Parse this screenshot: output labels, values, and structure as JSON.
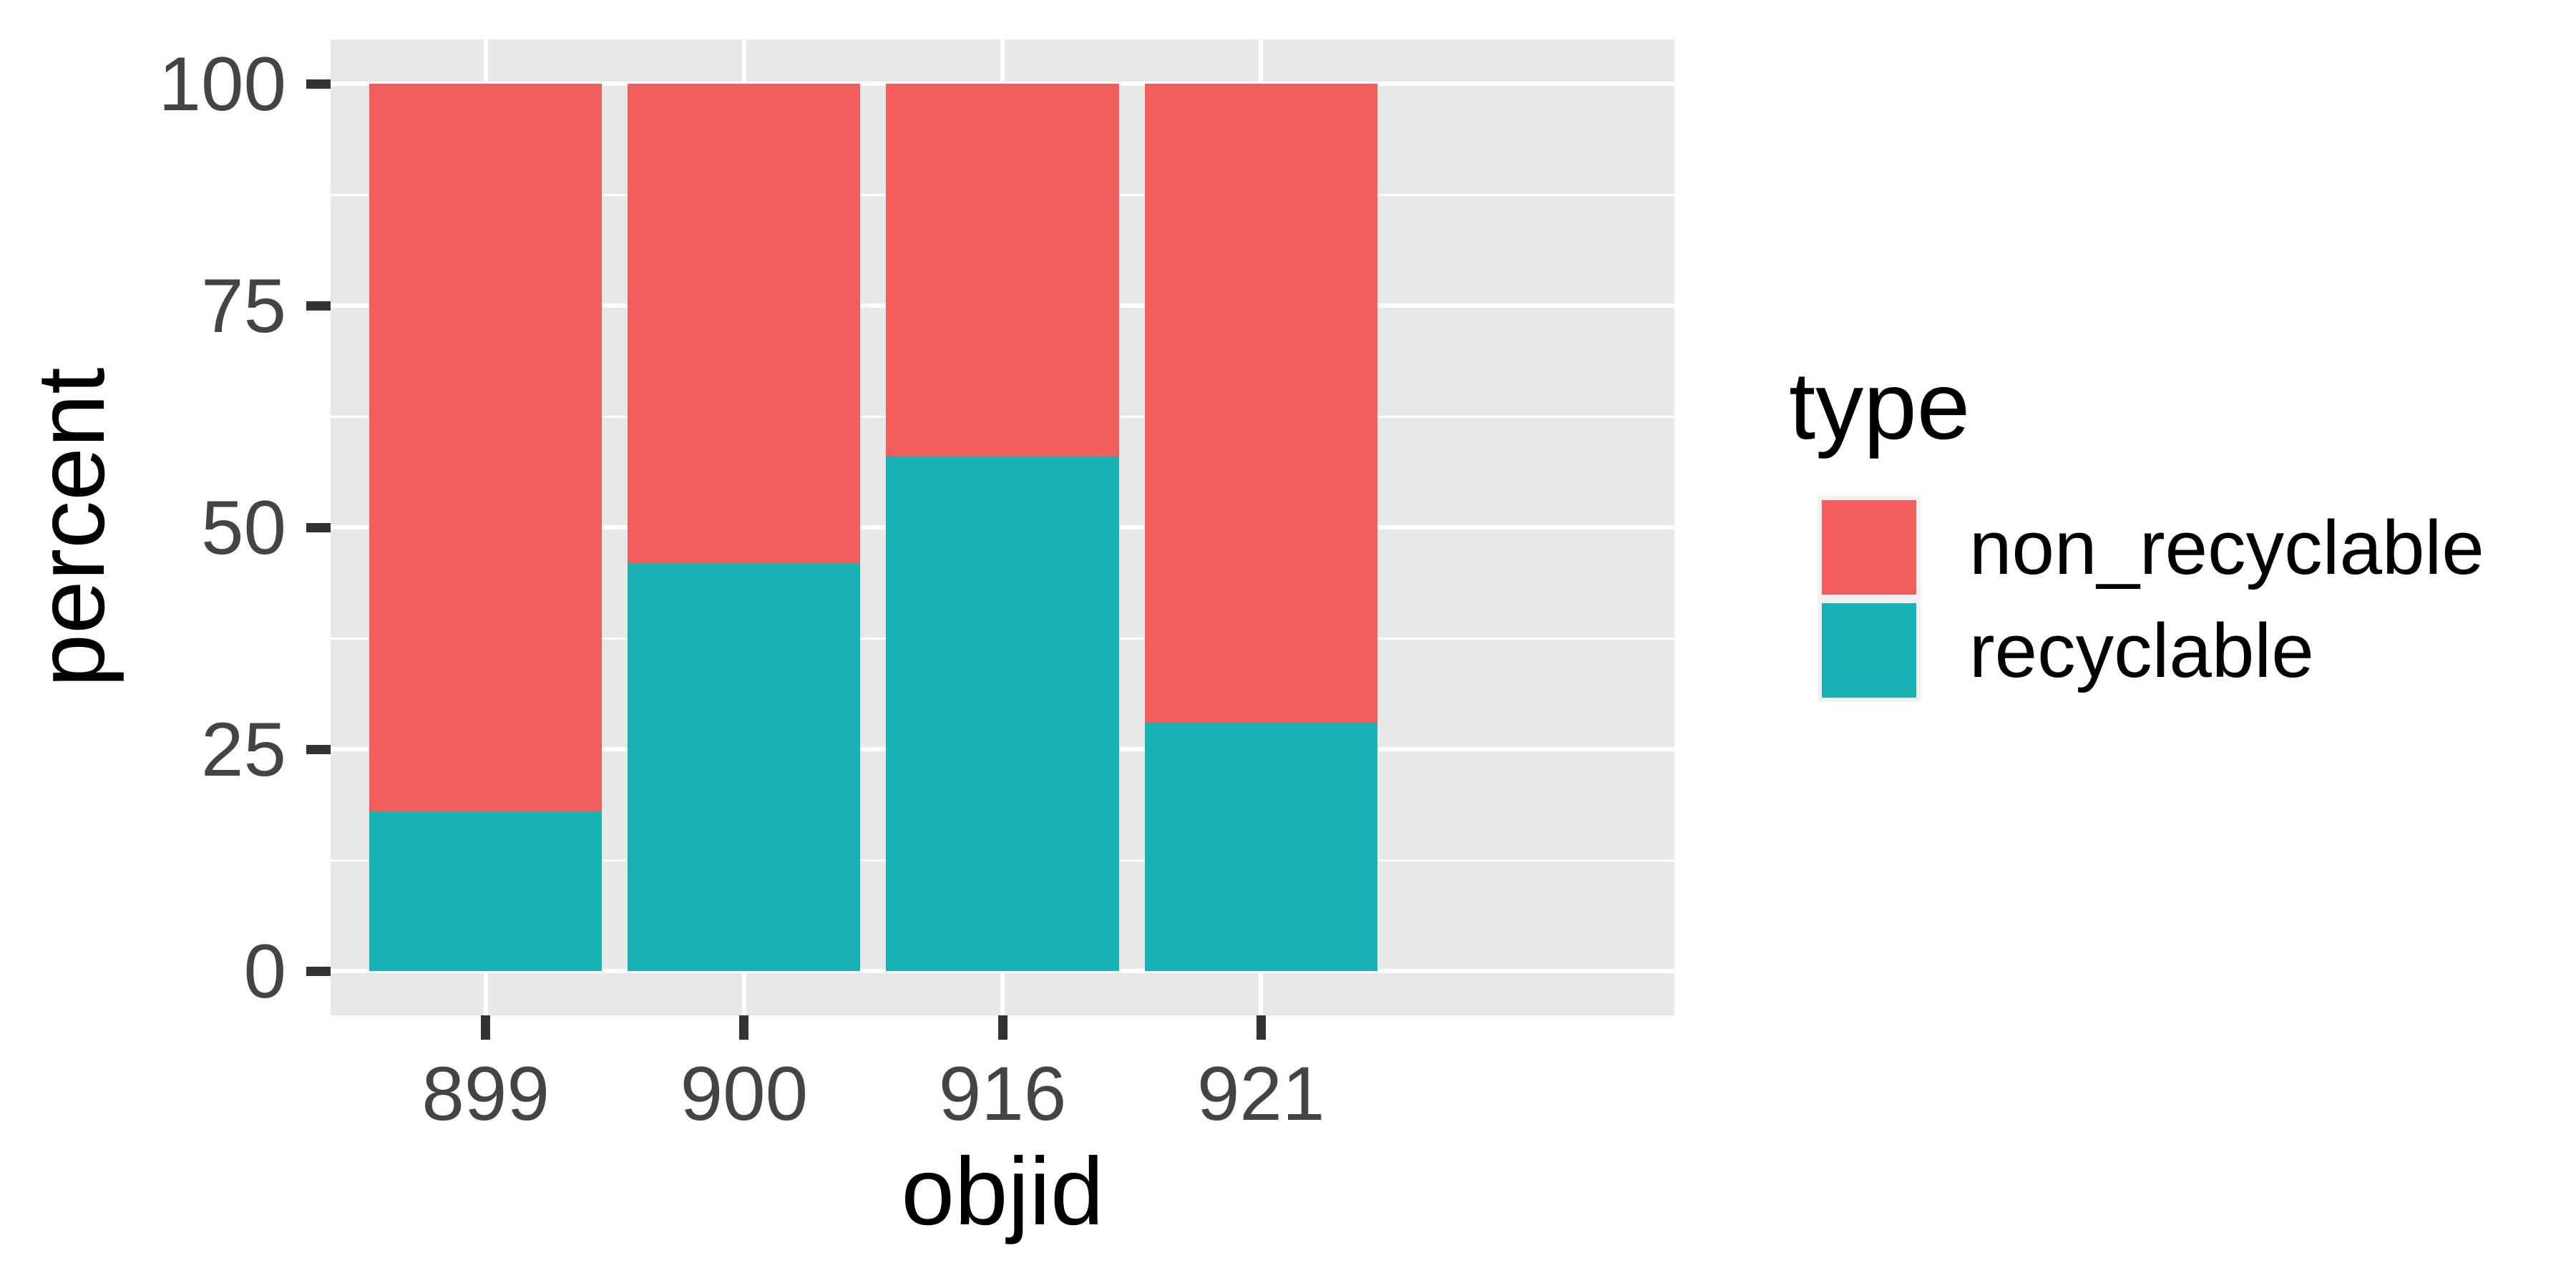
{
  "axes": {
    "x_title": "objid",
    "y_title": "percent",
    "x_tick_labels": [
      "899",
      "900",
      "916",
      "921"
    ],
    "y_tick_labels": [
      "0",
      "25",
      "50",
      "75",
      "100"
    ]
  },
  "legend": {
    "title": "type",
    "items": [
      {
        "label": "non_recyclable",
        "color": "#F25E5B"
      },
      {
        "label": "recyclable",
        "color": "#19B2B4"
      }
    ]
  },
  "chart_data": {
    "type": "bar",
    "stacked": true,
    "percent_scale": true,
    "categories": [
      "899",
      "900",
      "916",
      "921"
    ],
    "series": [
      {
        "name": "non_recyclable",
        "color": "#F25E5B",
        "values": [
          82,
          54,
          42,
          72
        ]
      },
      {
        "name": "recyclable",
        "color": "#19B2B4",
        "values": [
          18,
          46,
          58,
          28
        ]
      }
    ],
    "title": "",
    "xlabel": "objid",
    "ylabel": "percent",
    "ylim": [
      0,
      100
    ],
    "y_ticks": [
      0,
      25,
      50,
      75,
      100
    ],
    "y_minor_ticks": [
      12.5,
      37.5,
      62.5,
      87.5
    ],
    "grid": "white major and minor gridlines on gray panel",
    "legend_position": "right",
    "legend_title": "type"
  },
  "colors": {
    "background": "#ffffff",
    "panel_background": "#E8E8E8",
    "gridline": "#ffffff",
    "tick_mark": "#333333",
    "tick_text": "#444444",
    "title_text": "#000000",
    "legend_key_background": "#F0F0F0",
    "non_recyclable": "#F25E5B",
    "recyclable": "#19B2B4"
  }
}
